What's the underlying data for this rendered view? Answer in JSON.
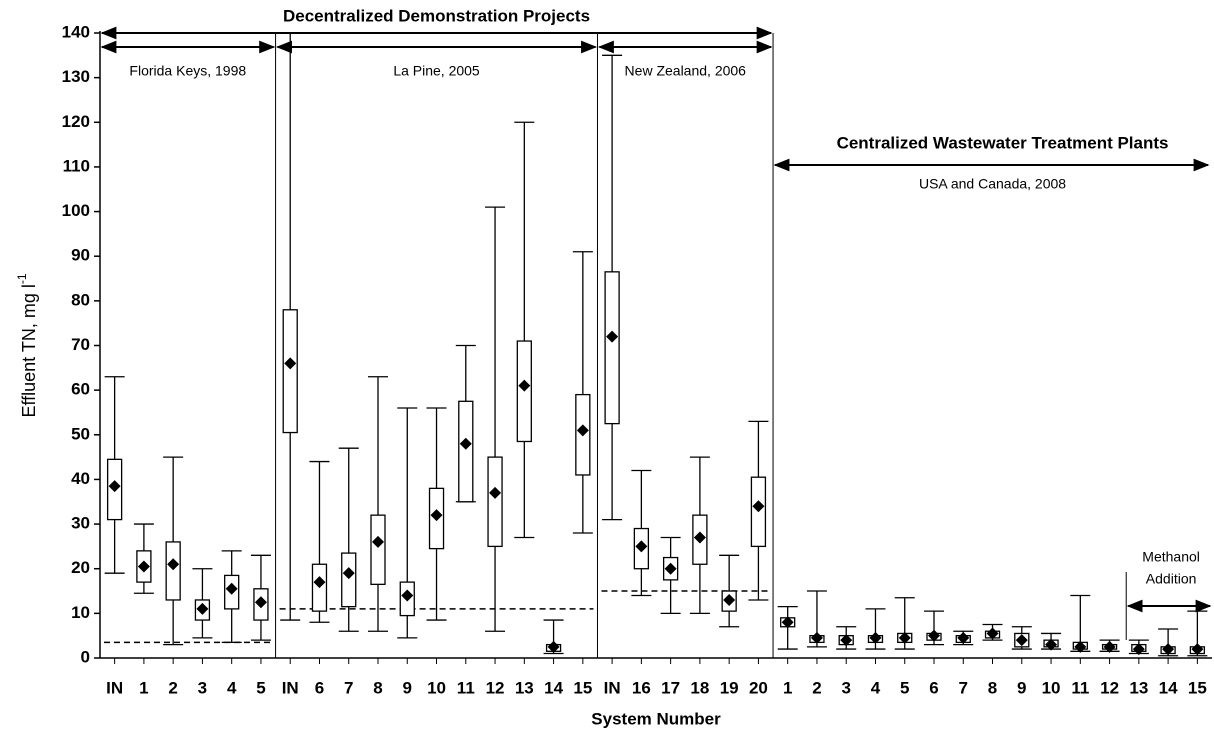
{
  "chart_data": {
    "type": "box",
    "color": "#000000",
    "y_label": "Effluent TN, mg l",
    "y_label_sup": "-1",
    "x_label": "System Number",
    "ylim": [
      0,
      140
    ],
    "yticks": [
      0,
      10,
      20,
      30,
      40,
      50,
      60,
      70,
      80,
      90,
      100,
      110,
      120,
      130,
      140
    ],
    "annotations": {
      "decentralized": "Decentralized Demonstration Projects",
      "centralized": "Centralized Wastewater Treatment Plants",
      "methanol": [
        "Methanol",
        "Addition"
      ]
    },
    "groups": [
      {
        "label": "Florida Keys, 1998",
        "threshold": 3.5,
        "categories": [
          "IN",
          "1",
          "2",
          "3",
          "4",
          "5"
        ],
        "boxes": [
          {
            "min": 19,
            "q1": 31,
            "q3": 44.5,
            "max": 63,
            "mean": 38.5
          },
          {
            "min": 14.5,
            "q1": 17,
            "q3": 24,
            "max": 30,
            "mean": 20.5
          },
          {
            "min": 3,
            "q1": 13,
            "q3": 26,
            "max": 45,
            "mean": 21
          },
          {
            "min": 4.5,
            "q1": 8.5,
            "q3": 13,
            "max": 20,
            "mean": 11
          },
          {
            "min": 3.5,
            "q1": 11,
            "q3": 18.5,
            "max": 24,
            "mean": 15.5
          },
          {
            "min": 4,
            "q1": 8.5,
            "q3": 15.5,
            "max": 23,
            "mean": 12.5
          }
        ]
      },
      {
        "label": "La Pine, 2005",
        "threshold": 11,
        "categories": [
          "IN",
          "6",
          "7",
          "8",
          "9",
          "10",
          "11",
          "12",
          "13",
          "14",
          "15"
        ],
        "boxes": [
          {
            "min": 8.5,
            "q1": 50.5,
            "q3": 78,
            "max": 140,
            "mean": 66
          },
          {
            "min": 8,
            "q1": 10.5,
            "q3": 21,
            "max": 44,
            "mean": 17
          },
          {
            "min": 6,
            "q1": 11.5,
            "q3": 23.5,
            "max": 47,
            "mean": 19
          },
          {
            "min": 6,
            "q1": 16.5,
            "q3": 32,
            "max": 63,
            "mean": 26
          },
          {
            "min": 4.5,
            "q1": 9.5,
            "q3": 17,
            "max": 56,
            "mean": 14
          },
          {
            "min": 8.5,
            "q1": 24.5,
            "q3": 38,
            "max": 56,
            "mean": 32
          },
          {
            "min": 35,
            "q1": 35,
            "q3": 57.5,
            "max": 70,
            "mean": 48
          },
          {
            "min": 6,
            "q1": 25,
            "q3": 45,
            "max": 101,
            "mean": 37
          },
          {
            "min": 27,
            "q1": 48.5,
            "q3": 71,
            "max": 120,
            "mean": 61
          },
          {
            "min": 1,
            "q1": 1.5,
            "q3": 3,
            "max": 8.5,
            "mean": 2.5
          },
          {
            "min": 28,
            "q1": 41,
            "q3": 59,
            "max": 91,
            "mean": 51
          }
        ]
      },
      {
        "label": "New Zealand, 2006",
        "threshold": 15,
        "categories": [
          "IN",
          "16",
          "17",
          "18",
          "19",
          "20"
        ],
        "boxes": [
          {
            "min": 31,
            "q1": 52.5,
            "q3": 86.5,
            "max": 135,
            "mean": 72
          },
          {
            "min": 14,
            "q1": 20,
            "q3": 29,
            "max": 42,
            "mean": 25
          },
          {
            "min": 10,
            "q1": 17.5,
            "q3": 22.5,
            "max": 27,
            "mean": 20
          },
          {
            "min": 10,
            "q1": 21,
            "q3": 32,
            "max": 45,
            "mean": 27
          },
          {
            "min": 7,
            "q1": 10.5,
            "q3": 15,
            "max": 23,
            "mean": 13
          },
          {
            "min": 13,
            "q1": 25,
            "q3": 40.5,
            "max": 53,
            "mean": 34
          }
        ]
      },
      {
        "label": "USA and Canada, 2008",
        "categories": [
          "1",
          "2",
          "3",
          "4",
          "5",
          "6",
          "7",
          "8",
          "9",
          "10",
          "11",
          "12",
          "13",
          "14",
          "15"
        ],
        "boxes": [
          {
            "min": 2,
            "q1": 7,
            "q3": 9,
            "max": 11.5,
            "mean": 8
          },
          {
            "min": 2.5,
            "q1": 3.5,
            "q3": 5,
            "max": 15,
            "mean": 4.5
          },
          {
            "min": 2,
            "q1": 3,
            "q3": 5,
            "max": 7,
            "mean": 4
          },
          {
            "min": 2,
            "q1": 3.5,
            "q3": 5,
            "max": 11,
            "mean": 4.5
          },
          {
            "min": 2,
            "q1": 3.5,
            "q3": 5.5,
            "max": 13.5,
            "mean": 4.5
          },
          {
            "min": 3,
            "q1": 4,
            "q3": 5.5,
            "max": 10.5,
            "mean": 5
          },
          {
            "min": 3,
            "q1": 3.5,
            "q3": 5,
            "max": 6,
            "mean": 4.5
          },
          {
            "min": 4,
            "q1": 4.5,
            "q3": 6,
            "max": 7.5,
            "mean": 5.5
          },
          {
            "min": 2,
            "q1": 2.5,
            "q3": 5.5,
            "max": 7,
            "mean": 4
          },
          {
            "min": 2,
            "q1": 2.5,
            "q3": 4,
            "max": 5.5,
            "mean": 3
          },
          {
            "min": 1.5,
            "q1": 2,
            "q3": 3.5,
            "max": 14,
            "mean": 2.5
          },
          {
            "min": 1.5,
            "q1": 2,
            "q3": 3,
            "max": 4,
            "mean": 2.5
          },
          {
            "min": 1,
            "q1": 1.5,
            "q3": 3,
            "max": 4,
            "mean": 2
          },
          {
            "min": 0.5,
            "q1": 1,
            "q3": 2.5,
            "max": 6.5,
            "mean": 2
          },
          {
            "min": 0.5,
            "q1": 1,
            "q3": 2.5,
            "max": 10.5,
            "mean": 2
          }
        ]
      }
    ]
  }
}
